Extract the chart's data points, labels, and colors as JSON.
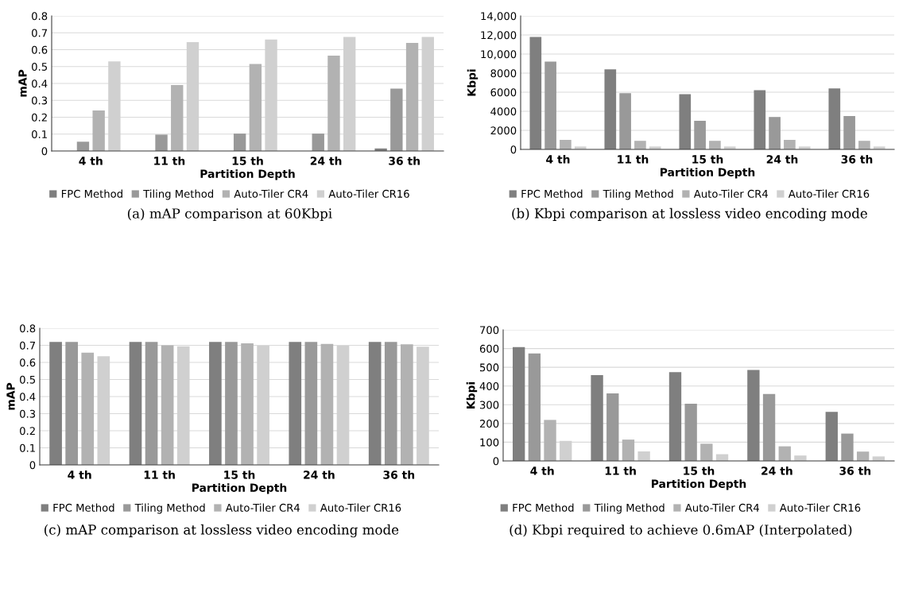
{
  "chart_data": [
    {
      "type": "bar",
      "xlabel": "Partition Depth",
      "ylabel": "mAP",
      "categories": [
        "4 th",
        "11 th",
        "15 th",
        "24 th",
        "36 th"
      ],
      "series": [
        {
          "name": "FPC Method",
          "color": "#7f7f7f",
          "values": [
            null,
            null,
            null,
            null,
            0.015
          ]
        },
        {
          "name": "Tiling Method",
          "color": "#999999",
          "values": [
            0.055,
            0.097,
            0.103,
            0.103,
            0.37
          ]
        },
        {
          "name": "Auto-Tiler CR4",
          "color": "#b2b2b2",
          "values": [
            0.24,
            0.39,
            0.515,
            0.565,
            0.64
          ]
        },
        {
          "name": "Auto-Tiler CR16",
          "color": "#d0d0d0",
          "values": [
            0.53,
            0.645,
            0.66,
            0.675,
            0.675
          ]
        }
      ],
      "ylim": [
        0,
        0.8
      ],
      "yticks": [
        0,
        0.1,
        0.2,
        0.3,
        0.4,
        0.5,
        0.6,
        0.7,
        0.8
      ],
      "grid": "y",
      "legend": "bottom",
      "annotations": [
        "(a) mAP comparison at 60Kbpi"
      ]
    },
    {
      "type": "bar",
      "xlabel": "Partition Depth",
      "ylabel": "Kbpi",
      "categories": [
        "4 th",
        "11 th",
        "15 th",
        "24 th",
        "36 th"
      ],
      "series": [
        {
          "name": "FPC Method",
          "color": "#7f7f7f",
          "values": [
            11800,
            8400,
            5800,
            6200,
            6400
          ]
        },
        {
          "name": "Tiling Method",
          "color": "#999999",
          "values": [
            9200,
            5900,
            3000,
            3400,
            3500
          ]
        },
        {
          "name": "Auto-Tiler CR4",
          "color": "#b2b2b2",
          "values": [
            1000,
            900,
            900,
            1000,
            900
          ]
        },
        {
          "name": "Auto-Tiler CR16",
          "color": "#d0d0d0",
          "values": [
            300,
            300,
            300,
            300,
            300
          ]
        }
      ],
      "ylim": [
        0,
        14000
      ],
      "yticks": [
        0,
        2000,
        4000,
        6000,
        8000,
        {
          "value": 10000,
          "label": "10,000"
        },
        {
          "value": 12000,
          "label": "12,000"
        },
        {
          "value": 14000,
          "label": "14,000"
        }
      ],
      "grid": "y",
      "legend": "bottom",
      "annotations": [
        "(b) Kbpi comparison at lossless video encoding mode"
      ]
    },
    {
      "type": "bar",
      "xlabel": "Partition Depth",
      "ylabel": "mAP",
      "categories": [
        "4 th",
        "11 th",
        "15 th",
        "24 th",
        "36 th"
      ],
      "series": [
        {
          "name": "FPC Method",
          "color": "#7f7f7f",
          "values": [
            0.72,
            0.72,
            0.72,
            0.72,
            0.72
          ]
        },
        {
          "name": "Tiling Method",
          "color": "#999999",
          "values": [
            0.72,
            0.72,
            0.72,
            0.72,
            0.72
          ]
        },
        {
          "name": "Auto-Tiler CR4",
          "color": "#b2b2b2",
          "values": [
            0.657,
            0.7,
            0.712,
            0.708,
            0.706
          ]
        },
        {
          "name": "Auto-Tiler CR16",
          "color": "#d0d0d0",
          "values": [
            0.636,
            0.694,
            0.698,
            0.698,
            0.692
          ]
        }
      ],
      "ylim": [
        0,
        0.8
      ],
      "yticks": [
        0,
        0.1,
        0.2,
        0.3,
        0.4,
        0.5,
        0.6,
        0.7,
        0.8
      ],
      "grid": "y",
      "legend": "bottom",
      "annotations": [
        "(c) mAP comparison at lossless video encoding mode"
      ]
    },
    {
      "type": "bar",
      "xlabel": "Partition Depth",
      "ylabel": "Kbpi",
      "categories": [
        "4 th",
        "11 th",
        "15 th",
        "24 th",
        "36 th"
      ],
      "series": [
        {
          "name": "FPC Method",
          "color": "#7f7f7f",
          "values": [
            608,
            458,
            474,
            486,
            262
          ]
        },
        {
          "name": "Tiling Method",
          "color": "#999999",
          "values": [
            574,
            361,
            305,
            357,
            146
          ]
        },
        {
          "name": "Auto-Tiler CR4",
          "color": "#b2b2b2",
          "values": [
            219,
            114,
            92,
            78,
            50
          ]
        },
        {
          "name": "Auto-Tiler CR16",
          "color": "#d0d0d0",
          "values": [
            107,
            51,
            36,
            29,
            24
          ]
        }
      ],
      "ylim": [
        0,
        700
      ],
      "yticks": [
        0,
        100,
        200,
        300,
        400,
        500,
        600,
        700
      ],
      "grid": "y",
      "legend": "bottom",
      "annotations": [
        "(d) Kbpi required to achieve 0.6mAP (Interpolated)"
      ]
    }
  ]
}
